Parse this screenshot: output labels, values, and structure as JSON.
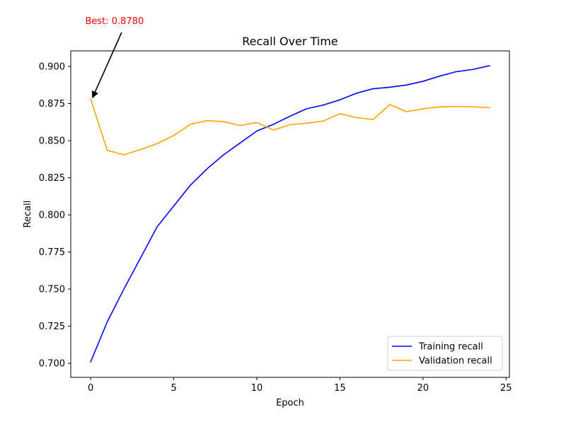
{
  "chart_data": {
    "type": "line",
    "title": "Recall Over Time",
    "xlabel": "Epoch",
    "ylabel": "Recall",
    "xlim": [
      -1.2,
      25.2
    ],
    "ylim": [
      0.6905,
      0.9105
    ],
    "xticks": [
      0,
      5,
      10,
      15,
      20,
      25
    ],
    "yticks": [
      0.7,
      0.725,
      0.75,
      0.775,
      0.8,
      0.825,
      0.85,
      0.875,
      0.9
    ],
    "xtick_labels": [
      "0",
      "5",
      "10",
      "15",
      "20",
      "25"
    ],
    "ytick_labels": [
      "0.700",
      "0.725",
      "0.750",
      "0.775",
      "0.800",
      "0.825",
      "0.850",
      "0.875",
      "0.900"
    ],
    "grid": false,
    "legend_position": "bottom-right",
    "x": [
      0,
      1,
      2,
      3,
      4,
      5,
      6,
      7,
      8,
      9,
      10,
      11,
      12,
      13,
      14,
      15,
      16,
      17,
      18,
      19,
      20,
      21,
      22,
      23,
      24
    ],
    "series": [
      {
        "name": "Training recall",
        "color": "#0000ff",
        "values": [
          0.701,
          0.728,
          0.75,
          0.771,
          0.792,
          0.806,
          0.82,
          0.831,
          0.8405,
          0.8485,
          0.8565,
          0.861,
          0.8665,
          0.8715,
          0.874,
          0.8775,
          0.882,
          0.885,
          0.886,
          0.8875,
          0.89,
          0.8935,
          0.8965,
          0.898,
          0.9005
        ]
      },
      {
        "name": "Validation recall",
        "color": "#ffa500",
        "values": [
          0.878,
          0.8435,
          0.8405,
          0.844,
          0.848,
          0.8535,
          0.861,
          0.8635,
          0.8628,
          0.8602,
          0.8622,
          0.8572,
          0.8608,
          0.8618,
          0.8632,
          0.8682,
          0.8655,
          0.8643,
          0.8743,
          0.8695,
          0.8715,
          0.8728,
          0.873,
          0.8728,
          0.8723
        ]
      }
    ],
    "annotation": {
      "text": "Best: 0.8780",
      "color": "#ff0000",
      "point": [
        0,
        0.878
      ],
      "text_anchor_data": [
        2.2,
        0.9105
      ]
    }
  }
}
